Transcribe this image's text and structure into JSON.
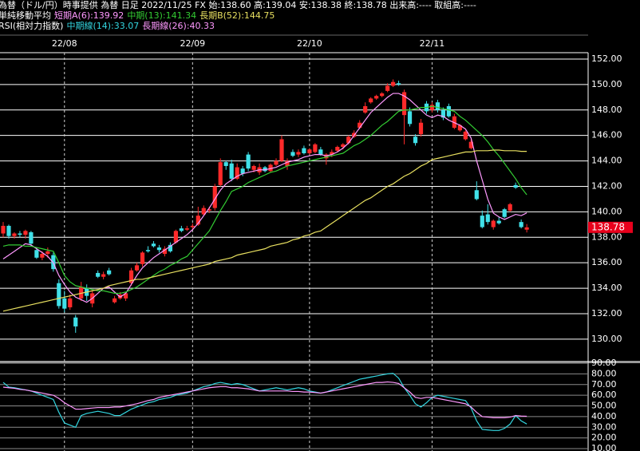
{
  "header": "為替（ドル/円）時事提供 為替 日足 2022/11/25 FX 始:138.60 高:139.04 安:138.38 終:138.78 出来高:---- 取組高:----",
  "chart_data": [
    {
      "type": "candlestick",
      "legend_title": "単純移動平均",
      "categories": [
        null,
        null,
        null,
        null,
        null,
        null,
        null,
        null,
        null,
        null,
        null,
        "22/08",
        null,
        null,
        null,
        null,
        null,
        null,
        null,
        null,
        null,
        null,
        null,
        null,
        null,
        null,
        null,
        null,
        null,
        null,
        null,
        null,
        null,
        null,
        "22/09",
        null,
        null,
        null,
        null,
        null,
        null,
        null,
        null,
        null,
        null,
        null,
        null,
        null,
        null,
        null,
        null,
        null,
        null,
        null,
        null,
        "22/10",
        null,
        null,
        null,
        null,
        null,
        null,
        null,
        null,
        null,
        null,
        null,
        null,
        null,
        null,
        null,
        null,
        null,
        null,
        null,
        null,
        null,
        "22/11",
        null,
        null,
        null,
        null,
        null,
        null,
        null,
        null,
        null,
        null,
        null,
        null,
        null,
        null,
        null,
        null,
        null
      ],
      "open": [
        138.3,
        138.9,
        138.1,
        138.3,
        138.2,
        138.4,
        137.0,
        136.4,
        136.7,
        136.6,
        134.4,
        133.2,
        132.5,
        131.7,
        133.2,
        134.0,
        132.8,
        135.2,
        134.9,
        135.4,
        132.9,
        133.2,
        133.2,
        134.4,
        135.4,
        135.9,
        137.0,
        137.5,
        137.2,
        136.7,
        137.4,
        137.6,
        138.7,
        138.6,
        138.8,
        139.0,
        139.8,
        140.1,
        140.3,
        142.1,
        143.9,
        143.8,
        142.6,
        143.4,
        144.5,
        143.3,
        143.1,
        143.5,
        143.2,
        143.7,
        144.0,
        143.6,
        144.7,
        144.5,
        145.0,
        144.6,
        144.7,
        144.9,
        144.2,
        144.5,
        144.8,
        145.1,
        145.4,
        145.9,
        146.6,
        147.8,
        148.6,
        148.9,
        149.1,
        149.5,
        149.9,
        150.1,
        147.6,
        147.9,
        145.9,
        146.1,
        148.5,
        148.0,
        148.6,
        148.0,
        148.3,
        146.6,
        146.4,
        145.7,
        145.0,
        141.7,
        139.7,
        139.8,
        138.8,
        139.3,
        140.2,
        140.1,
        142.1,
        139.2,
        138.6
      ],
      "high": [
        139.2,
        139.0,
        138.4,
        138.5,
        138.6,
        138.5,
        137.2,
        136.9,
        137.2,
        136.8,
        134.7,
        133.8,
        133.5,
        131.9,
        134.5,
        134.3,
        133.8,
        135.4,
        135.3,
        135.6,
        133.4,
        133.7,
        133.7,
        135.6,
        136.0,
        136.9,
        137.3,
        137.7,
        137.4,
        137.3,
        137.6,
        138.6,
        138.9,
        138.9,
        139.1,
        140.4,
        140.5,
        140.4,
        142.2,
        144.2,
        144.0,
        144.1,
        143.8,
        143.6,
        144.7,
        143.7,
        143.8,
        143.6,
        143.8,
        144.2,
        146.0,
        144.2,
        144.9,
        144.9,
        145.2,
        145.0,
        145.4,
        145.1,
        144.6,
        144.9,
        145.2,
        145.4,
        146.0,
        146.4,
        147.2,
        148.6,
        149.0,
        149.2,
        149.4,
        150.1,
        150.4,
        150.3,
        149.6,
        148.2,
        146.1,
        147.3,
        148.7,
        148.6,
        148.8,
        148.2,
        148.5,
        147.7,
        146.9,
        146.4,
        145.7,
        142.4,
        140.1,
        140.6,
        139.4,
        139.6,
        140.3,
        140.7,
        142.3,
        139.4,
        139.04
      ],
      "low": [
        138.0,
        137.9,
        137.9,
        138.0,
        137.9,
        137.3,
        136.3,
        136.2,
        136.4,
        135.3,
        132.4,
        132.1,
        132.3,
        130.5,
        133.0,
        133.0,
        132.5,
        134.8,
        134.7,
        135.0,
        132.8,
        133.1,
        133.0,
        134.2,
        135.3,
        135.7,
        136.8,
        137.2,
        136.8,
        136.5,
        136.8,
        137.5,
        138.4,
        138.5,
        138.6,
        138.9,
        139.7,
        139.9,
        140.1,
        142.0,
        143.3,
        142.4,
        142.5,
        142.8,
        143.2,
        143.1,
        142.9,
        143.1,
        143.1,
        143.6,
        143.9,
        143.3,
        144.3,
        144.3,
        144.5,
        144.5,
        144.6,
        144.4,
        143.7,
        144.3,
        144.7,
        144.9,
        145.3,
        145.8,
        146.5,
        147.7,
        148.5,
        148.8,
        149.0,
        149.4,
        149.8,
        149.9,
        145.3,
        146.7,
        145.2,
        145.9,
        147.7,
        147.8,
        147.8,
        147.2,
        147.4,
        146.5,
        146.3,
        145.6,
        144.9,
        140.9,
        138.7,
        139.0,
        138.6,
        139.0,
        139.5,
        140.0,
        141.8,
        138.7,
        138.38
      ],
      "close": [
        138.9,
        138.1,
        138.3,
        138.2,
        138.5,
        137.5,
        136.4,
        136.7,
        136.9,
        135.5,
        132.6,
        132.4,
        133.2,
        131.0,
        134.1,
        133.4,
        133.6,
        134.9,
        135.1,
        135.1,
        133.2,
        133.5,
        133.6,
        135.4,
        135.8,
        136.8,
        136.9,
        137.3,
        137.0,
        137.1,
        136.9,
        138.5,
        138.5,
        138.7,
        138.9,
        139.7,
        140.3,
        140.2,
        142.0,
        143.9,
        143.6,
        142.6,
        143.5,
        143.0,
        143.4,
        143.6,
        143.5,
        143.2,
        143.7,
        144.0,
        145.7,
        144.0,
        144.4,
        144.7,
        144.6,
        144.9,
        145.3,
        144.5,
        144.5,
        144.7,
        145.1,
        145.3,
        145.9,
        146.2,
        147.0,
        148.3,
        148.9,
        149.1,
        149.3,
        149.9,
        150.2,
        150.0,
        149.4,
        146.9,
        145.4,
        147.0,
        147.9,
        148.4,
        148.0,
        147.4,
        147.5,
        147.5,
        146.8,
        146.3,
        145.5,
        141.0,
        138.8,
        139.2,
        139.3,
        139.1,
        139.6,
        140.6,
        141.9,
        138.8,
        138.78
      ],
      "up_color": "#ff2a2a",
      "down_color": "#40e0e8",
      "last_close_label": "138.78",
      "series": [
        {
          "name": "短期A(6):139.92",
          "color": "#ff99ff",
          "values": [
            136.3,
            136.6,
            136.9,
            137.2,
            137.5,
            137.4,
            137.1,
            136.8,
            136.5,
            136.0,
            135.0,
            134.3,
            133.7,
            133.3,
            133.1,
            132.9,
            133.2,
            133.6,
            134.0,
            134.1,
            133.7,
            133.3,
            133.6,
            134.3,
            135.0,
            135.6,
            136.0,
            136.4,
            136.7,
            137.0,
            137.3,
            137.6,
            137.9,
            138.2,
            138.6,
            139.1,
            139.7,
            140.3,
            141.0,
            141.7,
            142.2,
            142.5,
            142.8,
            143.0,
            143.1,
            143.2,
            143.3,
            143.3,
            143.4,
            143.5,
            143.7,
            143.9,
            144.0,
            144.1,
            144.3,
            144.4,
            144.5,
            144.5,
            144.4,
            144.5,
            144.7,
            145.0,
            145.4,
            146.0,
            146.6,
            147.2,
            147.8,
            148.2,
            148.6,
            149.0,
            149.3,
            149.3,
            149.1,
            148.8,
            148.4,
            148.0,
            147.6,
            147.4,
            147.6,
            147.5,
            147.2,
            147.0,
            146.8,
            146.5,
            145.8,
            144.0,
            142.5,
            141.0,
            139.9,
            139.6,
            139.4,
            139.6,
            139.8,
            139.7,
            139.92
          ]
        },
        {
          "name": "中期(13):141.34",
          "color": "#33cc33",
          "values": [
            137.3,
            137.4,
            137.4,
            137.4,
            137.3,
            137.3,
            137.2,
            137.1,
            137.0,
            136.9,
            136.0,
            135.0,
            134.5,
            134.2,
            134.1,
            134.0,
            133.9,
            133.8,
            133.8,
            133.7,
            133.6,
            133.6,
            133.7,
            133.9,
            134.1,
            134.4,
            134.7,
            135.0,
            135.3,
            135.5,
            135.8,
            136.0,
            136.3,
            136.5,
            137.0,
            137.5,
            138.0,
            138.5,
            139.3,
            140.1,
            140.8,
            141.6,
            141.8,
            142.0,
            142.3,
            142.5,
            142.7,
            142.9,
            143.1,
            143.2,
            143.4,
            143.6,
            143.7,
            143.8,
            143.9,
            144.0,
            144.1,
            144.2,
            144.3,
            144.4,
            144.5,
            144.6,
            144.9,
            145.2,
            145.4,
            145.7,
            146.0,
            146.4,
            146.8,
            147.1,
            147.5,
            147.9,
            148.0,
            148.0,
            148.1,
            148.2,
            148.2,
            148.3,
            148.2,
            148.1,
            148.0,
            147.9,
            147.5,
            147.2,
            146.8,
            146.4,
            146.0,
            145.5,
            144.9,
            144.4,
            143.8,
            143.2,
            142.6,
            141.9,
            141.34
          ]
        },
        {
          "name": "長期B(52):144.75",
          "color": "#e8e060",
          "values": [
            132.2,
            132.3,
            132.4,
            132.5,
            132.6,
            132.7,
            132.8,
            132.9,
            133.0,
            133.1,
            133.2,
            133.3,
            133.4,
            133.5,
            133.6,
            133.7,
            133.8,
            133.9,
            134.0,
            134.2,
            134.3,
            134.4,
            134.5,
            134.6,
            134.7,
            134.7,
            134.8,
            134.9,
            135.0,
            135.1,
            135.2,
            135.3,
            135.4,
            135.5,
            135.6,
            135.7,
            135.8,
            135.9,
            136.1,
            136.2,
            136.3,
            136.4,
            136.6,
            136.7,
            136.8,
            136.9,
            137.0,
            137.1,
            137.3,
            137.4,
            137.5,
            137.6,
            137.8,
            137.9,
            138.1,
            138.2,
            138.4,
            138.5,
            138.8,
            139.1,
            139.4,
            139.7,
            140.0,
            140.3,
            140.6,
            140.9,
            141.1,
            141.4,
            141.7,
            142.0,
            142.2,
            142.5,
            142.8,
            143.0,
            143.3,
            143.6,
            143.8,
            144.1,
            144.2,
            144.3,
            144.4,
            144.5,
            144.6,
            144.7,
            144.7,
            144.8,
            144.8,
            144.8,
            144.85,
            144.85,
            144.8,
            144.8,
            144.8,
            144.75,
            144.75
          ]
        }
      ],
      "ylim": [
        128.3,
        152.5
      ],
      "yticks": [
        {
          "value": 130,
          "label": "130.00"
        },
        {
          "value": 132,
          "label": "132.00"
        },
        {
          "value": 134,
          "label": "134.00"
        },
        {
          "value": 136,
          "label": "136.00"
        },
        {
          "value": 138,
          "label": "138.00"
        },
        {
          "value": 140,
          "label": "140.00"
        },
        {
          "value": 142,
          "label": "142.00"
        },
        {
          "value": 144,
          "label": "144.00"
        },
        {
          "value": 146,
          "label": "146.00"
        },
        {
          "value": 148,
          "label": "148.00"
        },
        {
          "value": 150,
          "label": "150.00"
        },
        {
          "value": 152,
          "label": "152.00"
        }
      ],
      "grid": true
    },
    {
      "type": "line",
      "legend_title": "RSI(相対力指数)",
      "series": [
        {
          "name": "中期線(14):33.07",
          "color": "#33d6e0",
          "values": [
            72,
            67.6,
            67,
            66,
            65,
            64,
            62,
            60,
            58,
            56,
            44,
            34,
            32,
            30,
            41,
            43,
            44,
            45,
            44,
            43,
            41,
            41,
            44,
            47,
            49,
            51,
            53,
            54,
            56,
            57,
            58,
            60,
            61,
            62,
            64,
            66,
            68,
            69,
            71,
            72,
            71,
            70,
            71,
            70,
            68,
            66,
            64,
            65,
            66,
            67,
            66,
            65,
            66,
            67,
            66,
            64,
            63,
            62,
            63,
            65,
            67,
            69,
            71,
            73,
            75,
            76,
            77,
            78,
            79,
            80,
            80.5,
            76,
            67,
            60,
            52,
            49,
            53,
            58,
            60,
            59,
            58,
            57,
            56,
            55,
            48,
            36,
            28,
            27.5,
            27,
            27,
            29,
            33,
            41,
            36,
            33.07
          ]
        },
        {
          "name": "長期線(26):40.33",
          "color": "#ff99ff",
          "values": [
            67.6,
            67,
            66.5,
            65.5,
            65,
            64,
            63,
            62,
            61,
            60,
            57,
            53,
            50,
            47,
            47,
            47.5,
            48,
            48.5,
            48.5,
            48.5,
            49,
            49,
            50,
            51,
            52,
            53.5,
            55,
            56,
            58,
            59,
            60,
            61,
            62,
            63,
            64,
            65,
            66,
            67,
            67.6,
            68,
            68,
            67,
            67,
            66.5,
            66,
            65,
            64,
            64,
            64,
            64,
            64,
            64,
            63.5,
            63.5,
            63,
            63,
            62.5,
            62,
            63,
            64,
            65,
            66,
            67,
            68,
            69,
            70,
            71,
            72,
            72,
            72.5,
            72,
            71,
            67,
            63,
            58,
            57,
            58,
            58,
            57,
            56,
            55,
            54,
            53,
            52,
            49,
            44,
            40,
            39.5,
            39,
            39,
            39,
            39.5,
            41,
            40.5,
            40.33
          ]
        }
      ],
      "ylim": [
        7.8,
        90
      ],
      "yticks": [
        {
          "value": 10,
          "label": "10.00"
        },
        {
          "value": 20,
          "label": "20.00"
        },
        {
          "value": 30,
          "label": "30.00"
        },
        {
          "value": 40,
          "label": "40.00"
        },
        {
          "value": 50,
          "label": "50.00"
        },
        {
          "value": 60,
          "label": "60.00"
        },
        {
          "value": 70,
          "label": "70.00"
        },
        {
          "value": 80,
          "label": "80.00"
        },
        {
          "value": 90,
          "label": "90.00"
        }
      ],
      "grid": true
    }
  ]
}
